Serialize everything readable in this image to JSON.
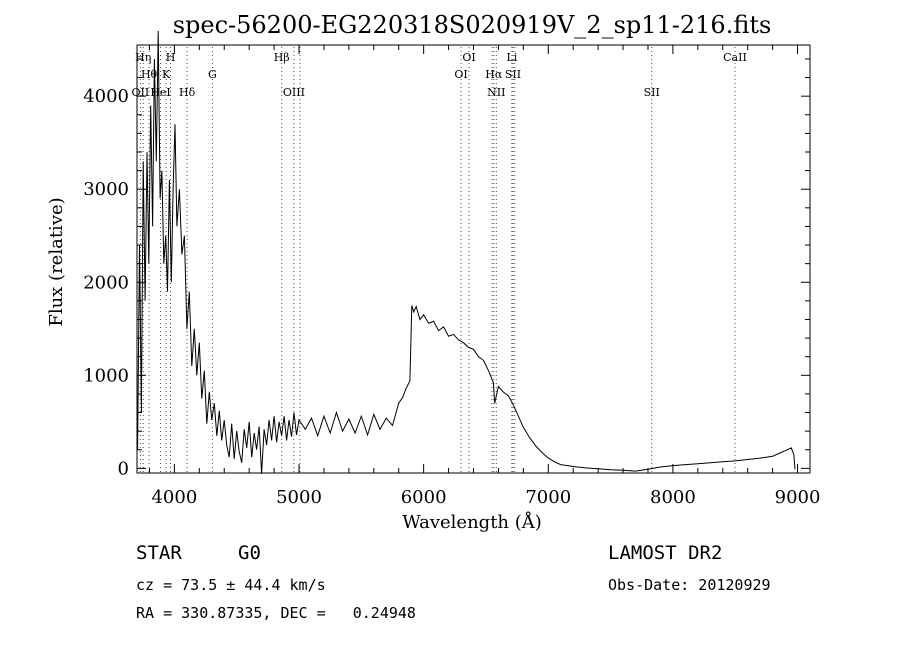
{
  "chart_data": {
    "type": "line",
    "title": "spec-56200-EG220318S020919V_2_sp11-216.fits",
    "xlabel": "Wavelength (Å)",
    "ylabel": "Flux (relative)",
    "xlim": [
      3700,
      9100
    ],
    "ylim": [
      -50,
      4550
    ],
    "xticks": [
      4000,
      5000,
      6000,
      7000,
      8000,
      9000
    ],
    "yticks": [
      0,
      1000,
      2000,
      3000,
      4000
    ],
    "grid": false,
    "line_color": "#000000",
    "marker_color": "#d01010",
    "series": [
      {
        "values": [
          [
            3705,
            200
          ],
          [
            3720,
            2400
          ],
          [
            3735,
            600
          ],
          [
            3750,
            3300
          ],
          [
            3765,
            1800
          ],
          [
            3780,
            3400
          ],
          [
            3795,
            2200
          ],
          [
            3810,
            3900
          ],
          [
            3825,
            2600
          ],
          [
            3840,
            4400
          ],
          [
            3855,
            3300
          ],
          [
            3870,
            4700
          ],
          [
            3885,
            2900
          ],
          [
            3900,
            3200
          ],
          [
            3915,
            2200
          ],
          [
            3930,
            2500
          ],
          [
            3945,
            1900
          ],
          [
            3960,
            3100
          ],
          [
            3975,
            2000
          ],
          [
            3990,
            3000
          ],
          [
            4005,
            3700
          ],
          [
            4020,
            2600
          ],
          [
            4040,
            3000
          ],
          [
            4060,
            2300
          ],
          [
            4080,
            2500
          ],
          [
            4100,
            1500
          ],
          [
            4120,
            1900
          ],
          [
            4140,
            1100
          ],
          [
            4160,
            1500
          ],
          [
            4180,
            1000
          ],
          [
            4200,
            1350
          ],
          [
            4220,
            750
          ],
          [
            4240,
            1050
          ],
          [
            4260,
            480
          ],
          [
            4280,
            820
          ],
          [
            4300,
            520
          ],
          [
            4320,
            700
          ],
          [
            4340,
            350
          ],
          [
            4360,
            620
          ],
          [
            4380,
            300
          ],
          [
            4400,
            520
          ],
          [
            4420,
            250
          ],
          [
            4440,
            120
          ],
          [
            4460,
            480
          ],
          [
            4480,
            100
          ],
          [
            4500,
            400
          ],
          [
            4520,
            180
          ],
          [
            4540,
            60
          ],
          [
            4560,
            420
          ],
          [
            4580,
            220
          ],
          [
            4600,
            500
          ],
          [
            4620,
            120
          ],
          [
            4640,
            380
          ],
          [
            4660,
            200
          ],
          [
            4680,
            450
          ],
          [
            4700,
            -60
          ],
          [
            4720,
            420
          ],
          [
            4740,
            250
          ],
          [
            4760,
            520
          ],
          [
            4780,
            300
          ],
          [
            4800,
            560
          ],
          [
            4820,
            280
          ],
          [
            4840,
            500
          ],
          [
            4860,
            350
          ],
          [
            4880,
            560
          ],
          [
            4900,
            300
          ],
          [
            4920,
            520
          ],
          [
            4940,
            340
          ],
          [
            4960,
            600
          ],
          [
            4980,
            360
          ],
          [
            5000,
            520
          ],
          [
            5050,
            420
          ],
          [
            5100,
            540
          ],
          [
            5150,
            350
          ],
          [
            5200,
            560
          ],
          [
            5250,
            380
          ],
          [
            5300,
            600
          ],
          [
            5350,
            400
          ],
          [
            5400,
            530
          ],
          [
            5450,
            380
          ],
          [
            5500,
            560
          ],
          [
            5550,
            360
          ],
          [
            5600,
            580
          ],
          [
            5650,
            420
          ],
          [
            5700,
            540
          ],
          [
            5750,
            460
          ],
          [
            5800,
            700
          ],
          [
            5830,
            760
          ],
          [
            5860,
            860
          ],
          [
            5890,
            940
          ],
          [
            5905,
            1750
          ],
          [
            5920,
            1680
          ],
          [
            5940,
            1740
          ],
          [
            5970,
            1600
          ],
          [
            6000,
            1650
          ],
          [
            6040,
            1560
          ],
          [
            6080,
            1580
          ],
          [
            6120,
            1480
          ],
          [
            6160,
            1520
          ],
          [
            6200,
            1420
          ],
          [
            6240,
            1440
          ],
          [
            6280,
            1380
          ],
          [
            6320,
            1350
          ],
          [
            6360,
            1300
          ],
          [
            6400,
            1280
          ],
          [
            6440,
            1200
          ],
          [
            6480,
            1160
          ],
          [
            6520,
            1050
          ],
          [
            6560,
            920
          ],
          [
            6570,
            700
          ],
          [
            6600,
            880
          ],
          [
            6640,
            820
          ],
          [
            6680,
            780
          ],
          [
            6720,
            680
          ],
          [
            6760,
            560
          ],
          [
            6800,
            440
          ],
          [
            6850,
            330
          ],
          [
            6900,
            240
          ],
          [
            6950,
            170
          ],
          [
            7000,
            110
          ],
          [
            7050,
            70
          ],
          [
            7100,
            40
          ],
          [
            7200,
            20
          ],
          [
            7300,
            5
          ],
          [
            7400,
            -5
          ],
          [
            7500,
            -15
          ],
          [
            7600,
            -20
          ],
          [
            7700,
            -30
          ],
          [
            7800,
            -10
          ],
          [
            7900,
            15
          ],
          [
            8000,
            30
          ],
          [
            8100,
            40
          ],
          [
            8200,
            50
          ],
          [
            8300,
            60
          ],
          [
            8400,
            70
          ],
          [
            8500,
            80
          ],
          [
            8600,
            95
          ],
          [
            8700,
            110
          ],
          [
            8800,
            130
          ],
          [
            8850,
            160
          ],
          [
            8900,
            190
          ],
          [
            8950,
            220
          ],
          [
            8970,
            150
          ],
          [
            8980,
            -10
          ]
        ]
      }
    ],
    "lines": [
      {
        "x": 3727,
        "label": "OII",
        "row": 3
      },
      {
        "x": 3750,
        "label": "Hη",
        "row": 1
      },
      {
        "x": 3797,
        "label": "Hθ",
        "row": 2
      },
      {
        "x": 3889,
        "label": "HeI",
        "row": 3
      },
      {
        "x": 3934,
        "label": "K",
        "row": 2
      },
      {
        "x": 3969,
        "label": "H",
        "row": 1
      },
      {
        "x": 4102,
        "label": "Hδ",
        "row": 3
      },
      {
        "x": 4305,
        "label": "G",
        "row": 2
      },
      {
        "x": 4861,
        "label": "Hβ",
        "row": 1
      },
      {
        "x": 4959,
        "label": "OIII",
        "row": 3
      },
      {
        "x": 5007,
        "label": "",
        "row": 0
      },
      {
        "x": 6300,
        "label": "OI",
        "row": 2
      },
      {
        "x": 6364,
        "label": "OI",
        "row": 1
      },
      {
        "x": 6548,
        "label": "",
        "row": 0
      },
      {
        "x": 6563,
        "label": "Hα",
        "row": 2
      },
      {
        "x": 6583,
        "label": "NII",
        "row": 3
      },
      {
        "x": 6708,
        "label": "Li",
        "row": 1
      },
      {
        "x": 6717,
        "label": "SII",
        "row": 2
      },
      {
        "x": 6731,
        "label": "",
        "row": 0
      },
      {
        "x": 7830,
        "label": "SII",
        "row": 3
      },
      {
        "x": 8498,
        "label": "CaII",
        "row": 1
      }
    ]
  },
  "info": {
    "object_class": "STAR",
    "subclass": "G0",
    "cz": "cz = 73.5 ± 44.4 km/s",
    "coords": "RA = 330.87335, DEC =   0.24948",
    "survey": "LAMOST DR2",
    "obs_date": "Obs-Date: 20120929"
  }
}
